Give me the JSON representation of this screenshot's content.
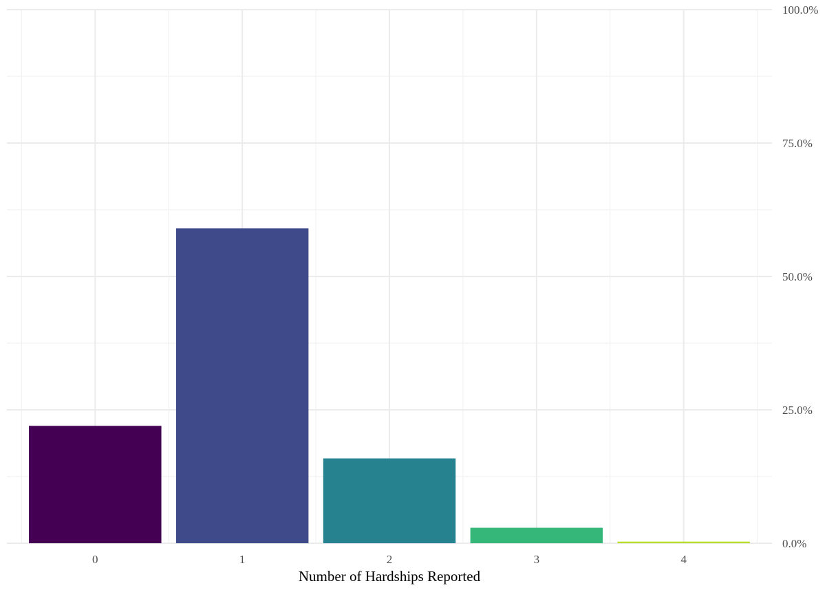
{
  "chart_data": {
    "type": "bar",
    "categories": [
      "0",
      "1",
      "2",
      "3",
      "4"
    ],
    "values": [
      22.0,
      59.0,
      15.9,
      2.9,
      0.3
    ],
    "colors": [
      "#440154",
      "#3E4A89",
      "#26828E",
      "#35B779",
      "#B8DE29"
    ],
    "xlabel": "Number of Hardships Reported",
    "ylabel": "",
    "ylim": [
      0,
      100
    ],
    "y_ticks": [
      0,
      25,
      50,
      75,
      100
    ],
    "y_tick_labels": [
      "0.0%",
      "25.0%",
      "50.0%",
      "75.0%",
      "100.0%"
    ],
    "y_axis_position": "right",
    "grid": true,
    "legend": "none"
  }
}
